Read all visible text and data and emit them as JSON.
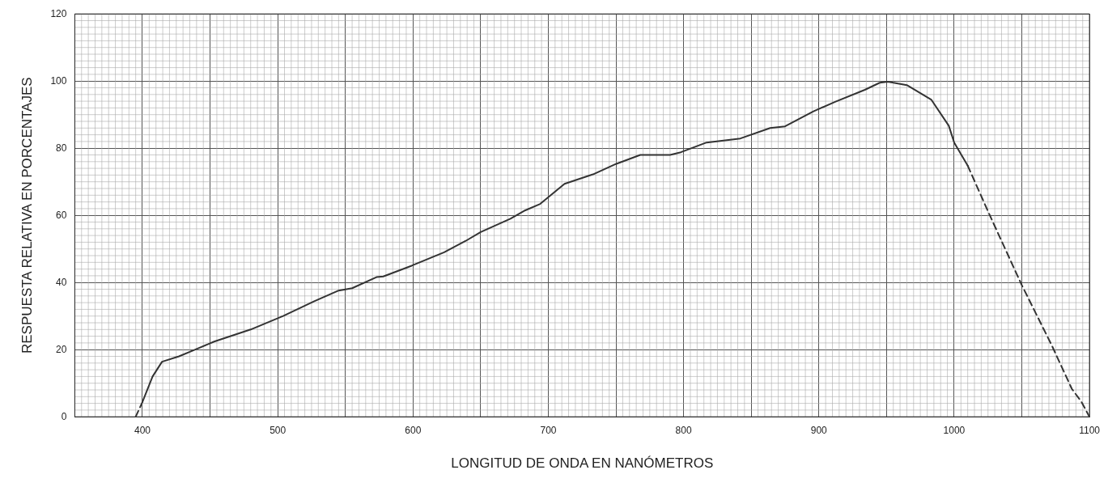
{
  "chart_data": {
    "type": "line",
    "xlabel": "LONGITUD DE ONDA EN NANÓMETROS",
    "ylabel": "RESPUESTA RELATIVA EN PORCENTAJES",
    "xlim": [
      350,
      1100
    ],
    "xticks": [
      400,
      {
        "value": 450,
        "label": null
      },
      500,
      {
        "value": 550,
        "label": null
      },
      600,
      {
        "value": 650,
        "label": null
      },
      700,
      {
        "value": 750,
        "label": null
      },
      800,
      {
        "value": 850,
        "label": null
      },
      900,
      {
        "value": 950,
        "label": null
      },
      1000,
      {
        "value": 1050,
        "label": null
      },
      1100
    ],
    "ylim": [
      0,
      120
    ],
    "yticks": [
      0,
      20,
      40,
      60,
      80,
      100,
      120
    ],
    "grid": true,
    "legend": false,
    "marker": "none",
    "series": [
      {
        "color": "#333333",
        "line_style": "dashed",
        "x": [
          395,
          400
        ],
        "values": [
          0,
          4.4
        ]
      },
      {
        "color": "#333333",
        "line_style": "solid",
        "x": [
          400,
          407.5,
          414.5,
          427,
          439,
          453,
          480,
          504,
          527,
          545,
          555,
          573,
          578,
          599,
          623,
          639,
          650,
          672,
          683,
          694,
          712,
          733,
          750,
          768,
          790,
          798,
          817,
          842,
          864,
          875,
          896,
          912,
          934,
          945,
          951,
          965,
          983,
          996,
          1000,
          1010
        ],
        "values": [
          4.4,
          12,
          16.4,
          18,
          20,
          22.4,
          26,
          30,
          34.4,
          37.6,
          38.3,
          41.6,
          41.8,
          45,
          49,
          52.4,
          55,
          59,
          61.5,
          63.4,
          69.4,
          72.2,
          75.3,
          78,
          78,
          78.8,
          81.7,
          82.9,
          86,
          86.5,
          91,
          93.8,
          97.4,
          99.5,
          99.8,
          98.8,
          94.5,
          86.7,
          81.7,
          74.8
        ]
      },
      {
        "color": "#333333",
        "line_style": "dashed",
        "x": [
          1010,
          1026,
          1050,
          1072,
          1087,
          1094,
          1100
        ],
        "values": [
          74.8,
          60.3,
          39.2,
          21.4,
          8.3,
          4.5,
          0
        ]
      }
    ]
  }
}
